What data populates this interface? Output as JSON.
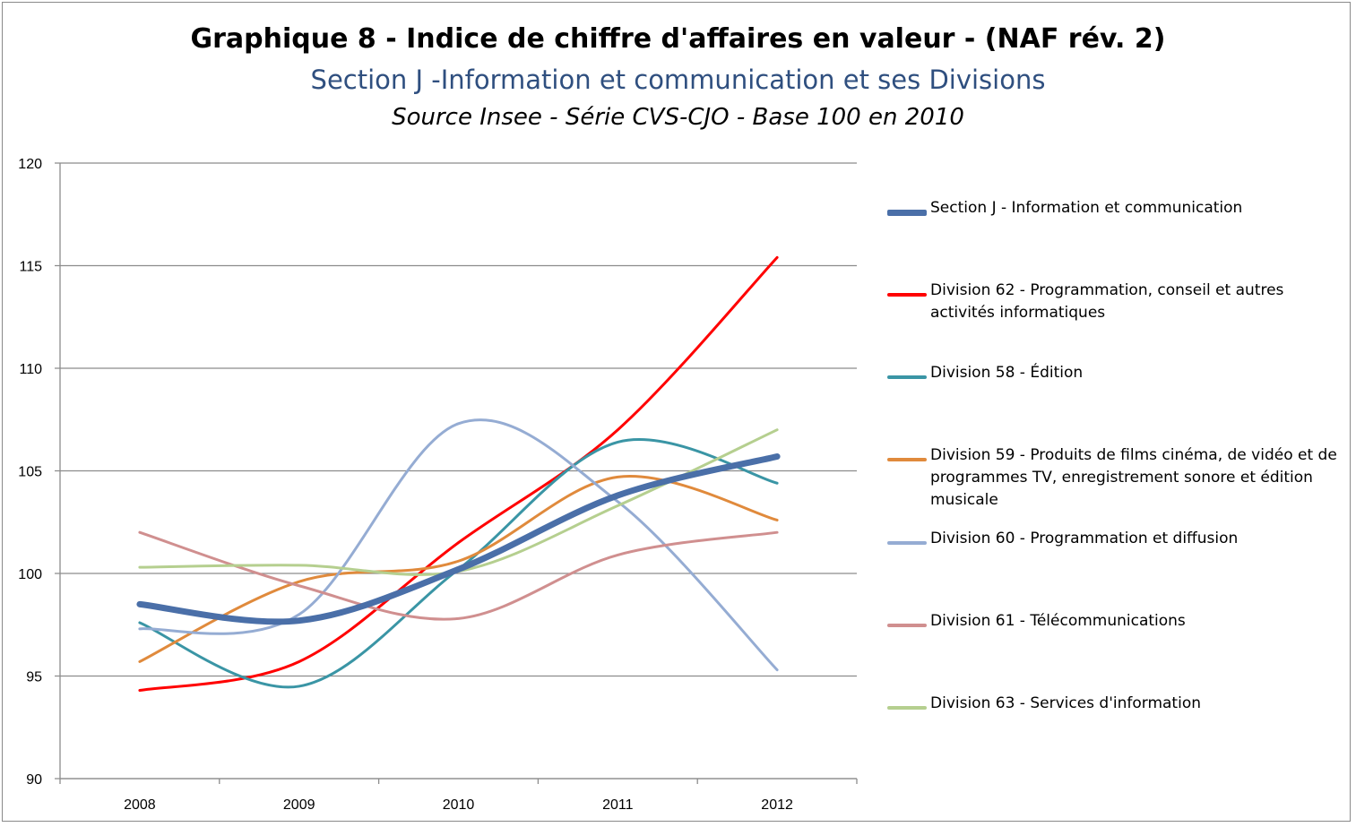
{
  "chart_data": {
    "type": "line",
    "title": "Graphique 8 - Indice de chiffre d'affaires en valeur - (NAF rév. 2)",
    "subtitle": "Section J -Information et communication et ses Divisions",
    "source": "Source Insee - Série CVS-CJO - Base 100 en 2010",
    "x": [
      "2008",
      "2009",
      "2010",
      "2011",
      "2012"
    ],
    "ylim": [
      90,
      120
    ],
    "yticks": [
      90,
      95,
      100,
      105,
      110,
      115,
      120
    ],
    "grid": true,
    "legend_position": "right",
    "series": [
      {
        "name": "Section J - Information et communication",
        "color": "#4a6fa8",
        "width": 7,
        "values": [
          98.5,
          97.7,
          100.2,
          103.8,
          105.7
        ]
      },
      {
        "name": "Division 62 - Programmation, conseil et autres activités informatiques",
        "color": "#ff0000",
        "width": 3,
        "values": [
          94.3,
          95.7,
          101.5,
          107.0,
          115.4
        ]
      },
      {
        "name": "Division 58 - Édition",
        "color": "#3a95a5",
        "width": 3,
        "values": [
          97.6,
          94.5,
          100.2,
          106.4,
          104.4
        ]
      },
      {
        "name": "Division 59 - Produits de films cinéma, de vidéo et de programmes TV, enregistrement sonore et édition musicale",
        "color": "#e08a3c",
        "width": 3,
        "values": [
          95.7,
          99.6,
          100.6,
          104.7,
          102.6
        ]
      },
      {
        "name": "Division 60 - Programmation et diffusion",
        "color": "#95acd3",
        "width": 3,
        "values": [
          97.3,
          98.0,
          107.3,
          103.5,
          95.3
        ]
      },
      {
        "name": "Division 61 - Télécommunications",
        "color": "#d08f8f",
        "width": 3,
        "values": [
          102.0,
          99.4,
          97.8,
          100.9,
          102.0
        ]
      },
      {
        "name": "Division 63 - Services d'information",
        "color": "#b5cf8f",
        "width": 3,
        "values": [
          100.3,
          100.4,
          100.1,
          103.3,
          107.0
        ]
      }
    ]
  }
}
